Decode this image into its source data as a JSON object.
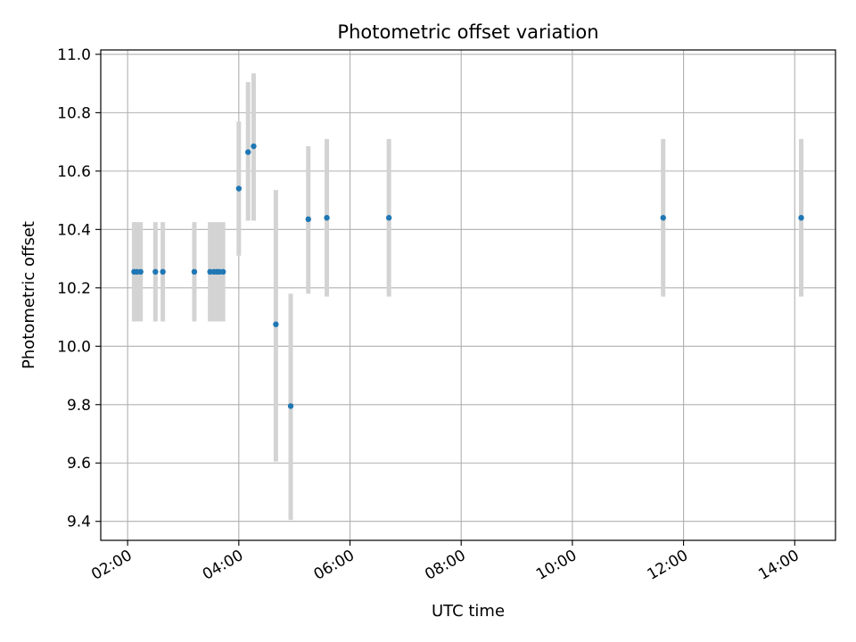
{
  "chart_data": {
    "type": "scatter",
    "title": "Photometric offset variation",
    "xlabel": "UTC time",
    "ylabel": "Photometric offset",
    "x_unit": "UTC time (HH:MM)",
    "xlim": [
      "01:31",
      "14:44"
    ],
    "ylim": [
      9.335,
      11.015
    ],
    "x_ticks": [
      "02:00",
      "04:00",
      "06:00",
      "08:00",
      "10:00",
      "12:00",
      "14:00"
    ],
    "y_ticks": [
      9.4,
      9.6,
      9.8,
      10.0,
      10.2,
      10.4,
      10.6,
      10.8,
      11.0
    ],
    "y_tick_labels": [
      "9.4",
      "9.6",
      "9.8",
      "10.0",
      "10.2",
      "10.4",
      "10.6",
      "10.8",
      "11.0"
    ],
    "grid": true,
    "legend": "none",
    "marker_color": "#1f77b4",
    "errorbar_color": "#d3d3d3",
    "points": [
      {
        "x": "02:07",
        "y": 10.255,
        "low": 10.085,
        "high": 10.425
      },
      {
        "x": "02:10",
        "y": 10.255,
        "low": 10.085,
        "high": 10.425
      },
      {
        "x": "02:14",
        "y": 10.255,
        "low": 10.085,
        "high": 10.425
      },
      {
        "x": "02:30",
        "y": 10.255,
        "low": 10.085,
        "high": 10.425
      },
      {
        "x": "02:38",
        "y": 10.255,
        "low": 10.085,
        "high": 10.425
      },
      {
        "x": "03:12",
        "y": 10.255,
        "low": 10.085,
        "high": 10.425
      },
      {
        "x": "03:29",
        "y": 10.255,
        "low": 10.085,
        "high": 10.425
      },
      {
        "x": "03:33",
        "y": 10.255,
        "low": 10.085,
        "high": 10.425
      },
      {
        "x": "03:36",
        "y": 10.255,
        "low": 10.085,
        "high": 10.425
      },
      {
        "x": "03:39",
        "y": 10.255,
        "low": 10.085,
        "high": 10.425
      },
      {
        "x": "03:43",
        "y": 10.255,
        "low": 10.085,
        "high": 10.425
      },
      {
        "x": "04:00",
        "y": 10.54,
        "low": 10.31,
        "high": 10.77
      },
      {
        "x": "04:10",
        "y": 10.665,
        "low": 10.43,
        "high": 10.905
      },
      {
        "x": "04:16",
        "y": 10.685,
        "low": 10.43,
        "high": 10.935
      },
      {
        "x": "04:40",
        "y": 10.075,
        "low": 9.605,
        "high": 10.535
      },
      {
        "x": "04:56",
        "y": 9.795,
        "low": 9.405,
        "high": 10.18
      },
      {
        "x": "05:15",
        "y": 10.435,
        "low": 10.18,
        "high": 10.685
      },
      {
        "x": "05:35",
        "y": 10.44,
        "low": 10.17,
        "high": 10.71
      },
      {
        "x": "06:42",
        "y": 10.44,
        "low": 10.17,
        "high": 10.71
      },
      {
        "x": "11:38",
        "y": 10.44,
        "low": 10.17,
        "high": 10.71
      },
      {
        "x": "14:07",
        "y": 10.44,
        "low": 10.17,
        "high": 10.71
      }
    ]
  }
}
